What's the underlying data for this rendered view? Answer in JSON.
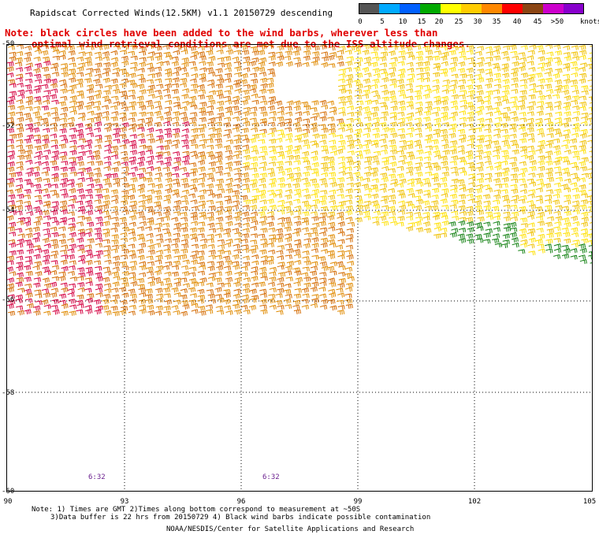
{
  "header": {
    "title": "Rapidscat Corrected Winds(12.5KM) v1.1 20150729 descending",
    "note_line1": "Note: black circles have been added to the wind barbs, wherever less than",
    "note_line2": "optimal wind retrieval conditions are met due to the ISS altitude changes."
  },
  "colorbar": {
    "colors": [
      "#555555",
      "#00aaff",
      "#0060ff",
      "#00aa00",
      "#ffff00",
      "#ffcc00",
      "#ff8800",
      "#ff0000",
      "#8b4513",
      "#cc00cc",
      "#8800cc"
    ],
    "labels": [
      "0",
      "5",
      "10",
      "15",
      "20",
      "25",
      "30",
      "35",
      "40",
      "45",
      ">50"
    ],
    "unit": "knots"
  },
  "map": {
    "lat_labels": [
      "-50",
      "-52",
      "-54",
      "-56",
      "-58",
      "-60"
    ],
    "lon_labels": [
      "90",
      "93",
      "96",
      "99",
      "102",
      "105"
    ],
    "time_labels": [
      "6:32",
      "6:32"
    ],
    "grid": "dotted",
    "barb_colors": {
      "orange": "#e08a00",
      "brown_orange": "#d46a00",
      "red": "#d40040",
      "yellow": "#ffe000",
      "gold": "#f0c000",
      "green": "#108010"
    }
  },
  "footer": {
    "line1": "Note: 1) Times are GMT 2)Times along bottom correspond to measurement at ~50S",
    "line2": "3)Data buffer is 22 hrs from 20150729 4) Black wind barbs indicate possible contamination",
    "line3": "NOAA/NESDIS/Center for Satellite Applications and Research"
  }
}
